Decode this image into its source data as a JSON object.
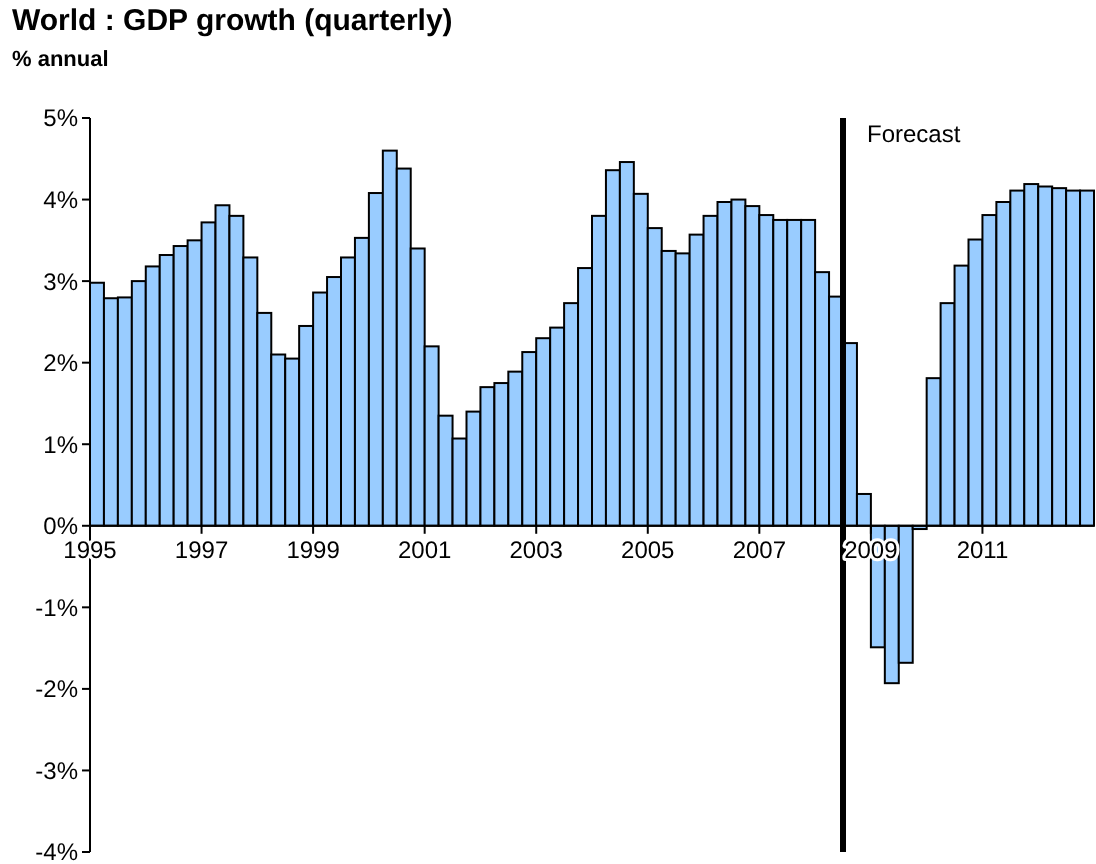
{
  "chart_data": {
    "type": "bar",
    "title": "World : GDP growth (quarterly)",
    "ylabel": "% annual",
    "x": [
      1995.125,
      1995.375,
      1995.625,
      1995.875,
      1996.125,
      1996.375,
      1996.625,
      1996.875,
      1997.125,
      1997.375,
      1997.625,
      1997.875,
      1998.125,
      1998.375,
      1998.625,
      1998.875,
      1999.125,
      1999.375,
      1999.625,
      1999.875,
      2000.125,
      2000.375,
      2000.625,
      2000.875,
      2001.125,
      2001.375,
      2001.625,
      2001.875,
      2002.125,
      2002.375,
      2002.625,
      2002.875,
      2003.125,
      2003.375,
      2003.625,
      2003.875,
      2004.125,
      2004.375,
      2004.625,
      2004.875,
      2005.125,
      2005.375,
      2005.625,
      2005.875,
      2006.125,
      2006.375,
      2006.625,
      2006.875,
      2007.125,
      2007.375,
      2007.625,
      2007.875,
      2008.125,
      2008.375,
      2008.625,
      2008.875,
      2009.125,
      2009.375,
      2009.625,
      2009.875,
      2010.125,
      2010.375,
      2010.625,
      2010.875,
      2011.125,
      2011.375,
      2011.625,
      2011.875,
      2012.125,
      2012.375,
      2012.625,
      2012.875
    ],
    "series": [
      {
        "color": "#99ccff",
        "values": [
          2.98,
          2.79,
          2.8,
          3.0,
          3.18,
          3.32,
          3.43,
          3.5,
          3.72,
          3.93,
          3.8,
          3.29,
          2.61,
          2.1,
          2.05,
          2.45,
          2.86,
          3.05,
          3.29,
          3.53,
          4.08,
          4.6,
          4.38,
          3.4,
          2.2,
          1.35,
          1.07,
          1.4,
          1.7,
          1.75,
          1.89,
          2.13,
          2.3,
          2.43,
          2.73,
          3.16,
          3.8,
          4.36,
          4.46,
          4.07,
          3.65,
          3.37,
          3.34,
          3.57,
          3.8,
          3.97,
          4.0,
          3.92,
          3.81,
          3.75,
          3.75,
          3.75,
          3.11,
          2.81,
          2.24,
          0.39,
          -1.49,
          -1.93,
          -1.68,
          -0.04,
          1.81,
          2.73,
          3.19,
          3.51,
          3.81,
          3.97,
          4.11,
          4.19,
          4.16,
          4.14,
          4.11,
          4.11
        ]
      }
    ],
    "xlim": [
      1995,
      2013
    ],
    "xticks": [
      1995,
      1997,
      1999,
      2001,
      2003,
      2005,
      2007,
      2009,
      2011
    ],
    "ylim": [
      -4,
      5
    ],
    "yticks": [
      {
        "value": -4,
        "label": "-4%"
      },
      {
        "value": -3,
        "label": "-3%"
      },
      {
        "value": -2,
        "label": "-2%"
      },
      {
        "value": -1,
        "label": "-1%"
      },
      {
        "value": 0,
        "label": "0%"
      },
      {
        "value": 1,
        "label": "1%"
      },
      {
        "value": 2,
        "label": "2%"
      },
      {
        "value": 3,
        "label": "3%"
      },
      {
        "value": 4,
        "label": "4%"
      },
      {
        "value": 5,
        "label": "5%"
      }
    ],
    "ref_lines": [
      {
        "axis": "x",
        "value": 2008.5,
        "label": "Forecast",
        "color": "#000000"
      }
    ],
    "grid": false
  }
}
